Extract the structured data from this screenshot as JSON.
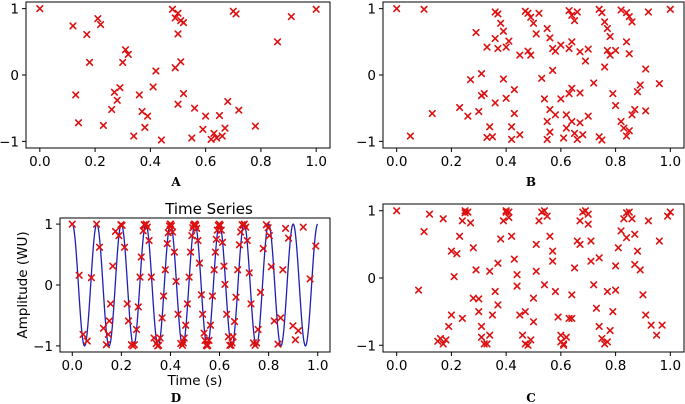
{
  "chart_data": [
    {
      "panel": "A",
      "type": "scatter",
      "title": "",
      "xlabel": "",
      "ylabel": "",
      "xlim": [
        -0.05,
        1.05
      ],
      "ylim": [
        -1.1,
        1.1
      ],
      "xticks": [
        "0.0",
        "0.2",
        "0.4",
        "0.6",
        "0.8",
        "1.0"
      ],
      "yticks": [
        "1",
        "0",
        "−1"
      ],
      "marker": "x",
      "marker_color": "#dd1111",
      "x": [
        0.0,
        0.12,
        0.21,
        0.22,
        0.17,
        0.31,
        0.32,
        0.3,
        0.29,
        0.18,
        0.48,
        0.5,
        0.49,
        0.51,
        0.5,
        0.52,
        0.49,
        0.7,
        0.71,
        0.91,
        1.0,
        0.86,
        0.13,
        0.14,
        0.27,
        0.28,
        0.26,
        0.36,
        0.42,
        0.41,
        0.5,
        0.52,
        0.51,
        0.56,
        0.6,
        0.65,
        0.68,
        0.67,
        0.39,
        0.38,
        0.44,
        0.59,
        0.64,
        0.78,
        0.66,
        0.55,
        0.23,
        0.34,
        0.37,
        0.62,
        0.63,
        0.72
      ],
      "y": [
        1.0,
        0.74,
        0.85,
        0.76,
        0.61,
        0.38,
        0.31,
        0.19,
        -0.19,
        0.19,
        0.99,
        0.93,
        0.86,
        0.82,
        0.62,
        0.79,
        0.11,
        0.96,
        0.92,
        0.88,
        0.99,
        0.5,
        -0.3,
        -0.72,
        -0.26,
        -0.38,
        -0.52,
        -0.3,
        0.06,
        -0.18,
        -0.44,
        -0.28,
        0.2,
        -0.5,
        -0.62,
        -0.61,
        -0.4,
        -0.8,
        -0.62,
        -0.79,
        -0.98,
        -0.82,
        -0.95,
        -0.77,
        -0.92,
        -0.95,
        -0.76,
        -0.92,
        -0.55,
        -0.97,
        -0.88,
        -0.53
      ]
    },
    {
      "panel": "B",
      "type": "scatter",
      "title": "",
      "xlabel": "",
      "ylabel": "",
      "xlim": [
        -0.05,
        1.05
      ],
      "ylim": [
        -1.1,
        1.1
      ],
      "xticks": [
        "0.0",
        "0.2",
        "0.4",
        "0.6",
        "0.8",
        "1.0"
      ],
      "yticks": [
        "1",
        "0",
        "−1"
      ],
      "marker": "x",
      "marker_color": "#dd1111",
      "x": [
        0.0,
        0.1,
        0.29,
        0.33,
        0.36,
        0.37,
        0.38,
        0.39,
        0.36,
        0.37,
        0.4,
        0.41,
        0.45,
        0.47,
        0.48,
        0.49,
        0.5,
        0.51,
        0.49,
        0.48,
        0.52,
        0.55,
        0.56,
        0.57,
        0.58,
        0.6,
        0.63,
        0.64,
        0.65,
        0.66,
        0.64,
        0.63,
        0.67,
        0.7,
        0.74,
        0.75,
        0.76,
        0.77,
        0.78,
        0.8,
        0.82,
        0.84,
        0.85,
        0.86,
        0.84,
        0.85,
        0.92,
        1.0,
        0.78,
        0.69,
        0.77,
        0.91,
        0.96,
        0.32,
        0.23,
        0.26,
        0.3,
        0.31,
        0.34,
        0.35,
        0.33,
        0.36,
        0.4,
        0.43,
        0.42,
        0.42,
        0.45,
        0.54,
        0.56,
        0.55,
        0.56,
        0.58,
        0.6,
        0.62,
        0.62,
        0.61,
        0.64,
        0.65,
        0.66,
        0.63,
        0.67,
        0.68,
        0.7,
        0.74,
        0.75,
        0.79,
        0.8,
        0.82,
        0.83,
        0.84,
        0.85,
        0.87,
        0.86,
        0.88,
        0.91,
        0.89,
        0.05,
        0.13,
        0.27,
        0.31,
        0.39,
        0.43,
        0.53,
        0.57,
        0.64,
        0.67,
        0.72,
        0.76,
        0.55
      ],
      "y": [
        1.0,
        0.99,
        0.64,
        0.42,
        0.95,
        0.92,
        0.78,
        0.66,
        0.55,
        0.4,
        0.42,
        0.51,
        0.3,
        0.96,
        0.93,
        0.87,
        0.78,
        0.62,
        0.3,
        0.36,
        0.93,
        0.7,
        0.56,
        0.4,
        0.36,
        0.45,
        0.97,
        0.9,
        0.82,
        0.95,
        0.5,
        0.4,
        0.35,
        0.39,
        0.99,
        0.94,
        0.8,
        0.7,
        0.58,
        0.37,
        0.98,
        0.94,
        0.88,
        0.8,
        0.5,
        0.32,
        0.95,
        0.99,
        0.3,
        0.21,
        0.37,
        0.09,
        -0.13,
        -0.28,
        -0.49,
        -0.62,
        -0.55,
        -0.31,
        -0.78,
        -0.93,
        -0.94,
        -0.42,
        -0.35,
        -0.58,
        -0.78,
        -0.97,
        -0.9,
        -0.36,
        -0.52,
        -0.7,
        -0.86,
        -0.6,
        -0.36,
        -0.6,
        -0.8,
        -0.95,
        -0.7,
        -0.88,
        -0.97,
        -0.28,
        -0.72,
        -0.9,
        -0.62,
        -0.93,
        -0.98,
        -0.28,
        -0.46,
        -0.7,
        -0.8,
        -0.92,
        -0.84,
        -0.52,
        -0.6,
        -0.25,
        -0.54,
        -0.15,
        -0.92,
        -0.58,
        -0.07,
        0.02,
        -0.06,
        -0.22,
        -0.05,
        0.07,
        -0.2,
        -0.27,
        -0.12,
        0.12,
        -0.97
      ]
    },
    {
      "panel": "D",
      "type": "scatter",
      "title": "Time Series",
      "xlabel": "Time (s)",
      "ylabel": "Amplitude (WU)",
      "xlim": [
        -0.05,
        1.05
      ],
      "ylim": [
        -1.1,
        1.1
      ],
      "xticks": [
        "0.0",
        "0.2",
        "0.4",
        "0.6",
        "0.8",
        "1.0"
      ],
      "yticks": [
        "1",
        "0",
        "−1"
      ],
      "marker": "x",
      "marker_color": "#dd1111",
      "line_color": "#1f1fb4",
      "curve": {
        "function": "cos",
        "frequency_hz": 10,
        "t_start": 0.0,
        "t_end": 1.0
      },
      "x": [
        0.0,
        0.028,
        0.044,
        0.061,
        0.078,
        0.099,
        0.111,
        0.127,
        0.139,
        0.147,
        0.151,
        0.156,
        0.165,
        0.176,
        0.19,
        0.198,
        0.203,
        0.213,
        0.224,
        0.229,
        0.241,
        0.247,
        0.253,
        0.262,
        0.269,
        0.276,
        0.281,
        0.289,
        0.293,
        0.297,
        0.301,
        0.306,
        0.313,
        0.322,
        0.333,
        0.342,
        0.348,
        0.352,
        0.358,
        0.366,
        0.372,
        0.379,
        0.387,
        0.391,
        0.396,
        0.399,
        0.401,
        0.404,
        0.409,
        0.416,
        0.423,
        0.431,
        0.442,
        0.449,
        0.452,
        0.456,
        0.462,
        0.469,
        0.476,
        0.482,
        0.487,
        0.491,
        0.494,
        0.497,
        0.5,
        0.503,
        0.507,
        0.512,
        0.518,
        0.526,
        0.531,
        0.537,
        0.541,
        0.546,
        0.549,
        0.552,
        0.557,
        0.563,
        0.571,
        0.578,
        0.583,
        0.587,
        0.591,
        0.595,
        0.599,
        0.603,
        0.607,
        0.612,
        0.618,
        0.622,
        0.629,
        0.636,
        0.642,
        0.647,
        0.651,
        0.655,
        0.661,
        0.667,
        0.674,
        0.681,
        0.686,
        0.692,
        0.697,
        0.701,
        0.707,
        0.713,
        0.721,
        0.728,
        0.738,
        0.745,
        0.751,
        0.757,
        0.767,
        0.778,
        0.791,
        0.798,
        0.803,
        0.811,
        0.823,
        0.838,
        0.849,
        0.858,
        0.869,
        0.881,
        0.899,
        0.909,
        0.921,
        0.941,
        0.969,
        0.992
      ],
      "y": [
        1.0,
        0.16,
        -0.81,
        -0.92,
        0.12,
        1.0,
        0.62,
        -0.71,
        -0.98,
        -0.81,
        -0.59,
        -0.31,
        0.31,
        0.88,
        0.81,
        0.99,
        0.98,
        0.62,
        -0.31,
        -0.59,
        -0.98,
        -1.0,
        -0.98,
        -0.73,
        -0.36,
        0.13,
        0.46,
        0.89,
        0.99,
        0.98,
        1.0,
        0.95,
        0.73,
        0.13,
        -0.87,
        -0.96,
        -1.0,
        -0.99,
        -0.87,
        -0.54,
        -0.18,
        0.25,
        0.68,
        0.86,
        0.97,
        1.0,
        1.0,
        0.97,
        0.87,
        0.54,
        0.06,
        -0.48,
        -0.96,
        -0.99,
        -0.95,
        -0.87,
        -0.66,
        -0.31,
        0.13,
        0.54,
        0.81,
        0.94,
        0.98,
        1.0,
        1.0,
        0.98,
        0.93,
        0.73,
        0.36,
        -0.16,
        -0.48,
        -0.79,
        -0.91,
        -0.99,
        -1.0,
        -0.99,
        -0.91,
        -0.66,
        -0.18,
        0.25,
        0.54,
        0.75,
        0.9,
        0.98,
        1.0,
        0.98,
        0.9,
        0.7,
        0.31,
        0.01,
        -0.48,
        -0.85,
        -0.99,
        -0.99,
        -0.95,
        -0.85,
        -0.6,
        -0.2,
        0.25,
        0.66,
        0.87,
        0.99,
        0.98,
        1.0,
        0.95,
        0.73,
        0.2,
        -0.31,
        -0.95,
        -0.99,
        -0.95,
        -0.73,
        -0.12,
        0.6,
        0.99,
        0.94,
        0.81,
        0.3,
        -0.59,
        -0.97,
        -0.54,
        0.25,
        0.93,
        0.77,
        -0.67,
        -0.9,
        -0.75,
        0.95,
        0.1,
        0.64
      ]
    },
    {
      "panel": "C",
      "type": "scatter",
      "title": "",
      "xlabel": "",
      "ylabel": "",
      "xlim": [
        -0.05,
        1.05
      ],
      "ylim": [
        -1.1,
        1.1
      ],
      "xticks": [
        "0.0",
        "0.2",
        "0.4",
        "0.6",
        "0.8",
        "1.0"
      ],
      "yticks": [
        "1",
        "0",
        "−1"
      ],
      "marker": "x",
      "marker_color": "#dd1111",
      "x": [
        0.0,
        0.1,
        0.12,
        0.08,
        0.16,
        0.17,
        0.18,
        0.19,
        0.2,
        0.21,
        0.22,
        0.23,
        0.24,
        0.25,
        0.25,
        0.26,
        0.27,
        0.28,
        0.29,
        0.3,
        0.3,
        0.31,
        0.31,
        0.32,
        0.33,
        0.34,
        0.35,
        0.36,
        0.37,
        0.38,
        0.39,
        0.4,
        0.4,
        0.41,
        0.41,
        0.42,
        0.43,
        0.44,
        0.45,
        0.46,
        0.47,
        0.48,
        0.49,
        0.5,
        0.5,
        0.51,
        0.51,
        0.52,
        0.53,
        0.54,
        0.55,
        0.56,
        0.57,
        0.58,
        0.59,
        0.6,
        0.6,
        0.61,
        0.61,
        0.62,
        0.63,
        0.64,
        0.65,
        0.66,
        0.67,
        0.68,
        0.69,
        0.7,
        0.7,
        0.71,
        0.71,
        0.72,
        0.73,
        0.74,
        0.75,
        0.76,
        0.77,
        0.78,
        0.79,
        0.8,
        0.8,
        0.81,
        0.82,
        0.83,
        0.84,
        0.85,
        0.86,
        0.87,
        0.88,
        0.89,
        0.9,
        0.91,
        0.93,
        0.95,
        0.97,
        1.0,
        0.15,
        0.17,
        0.2,
        0.24,
        0.28,
        0.34,
        0.37,
        0.44,
        0.47,
        0.54,
        0.57,
        0.64,
        0.67,
        0.74,
        0.77,
        0.84,
        0.87,
        0.92,
        0.96,
        0.99
      ],
      "y": [
        1.0,
        0.69,
        0.95,
        -0.18,
        -0.9,
        -0.98,
        -0.92,
        -0.72,
        -0.55,
        0.02,
        0.36,
        0.62,
        0.85,
        0.97,
        1.0,
        0.98,
        0.82,
        0.45,
        0.12,
        -0.31,
        -0.5,
        -0.72,
        -0.88,
        -0.98,
        -0.98,
        -0.85,
        -0.55,
        -0.2,
        0.22,
        0.58,
        0.85,
        0.98,
        1.0,
        0.98,
        0.9,
        0.62,
        0.28,
        -0.12,
        -0.55,
        -0.85,
        -0.98,
        -1.0,
        -0.92,
        -0.65,
        -0.3,
        0.1,
        0.5,
        0.85,
        0.98,
        1.0,
        0.92,
        0.62,
        0.25,
        -0.2,
        -0.58,
        -0.85,
        -0.95,
        -1.0,
        -0.98,
        -0.88,
        -0.6,
        -0.25,
        0.15,
        0.55,
        0.85,
        0.98,
        1.0,
        0.95,
        0.8,
        0.55,
        0.25,
        -0.1,
        -0.45,
        -0.72,
        -0.9,
        -0.98,
        -0.95,
        -0.78,
        -0.5,
        -0.18,
        0.18,
        0.45,
        0.7,
        0.88,
        0.97,
        0.98,
        0.88,
        0.65,
        0.4,
        0.12,
        -0.25,
        -0.55,
        -0.7,
        -0.85,
        -0.7,
        0.98,
        -0.94,
        0.88,
        0.4,
        -0.6,
        -0.3,
        0.1,
        -0.4,
        0.05,
        -0.5,
        -0.1,
        0.4,
        -0.6,
        0.5,
        0.3,
        -0.2,
        0.6,
        0.2,
        0.85,
        0.55,
        0.92
      ]
    }
  ],
  "panel_labels": {
    "a": "A",
    "b": "B",
    "c": "C",
    "d": "D"
  }
}
